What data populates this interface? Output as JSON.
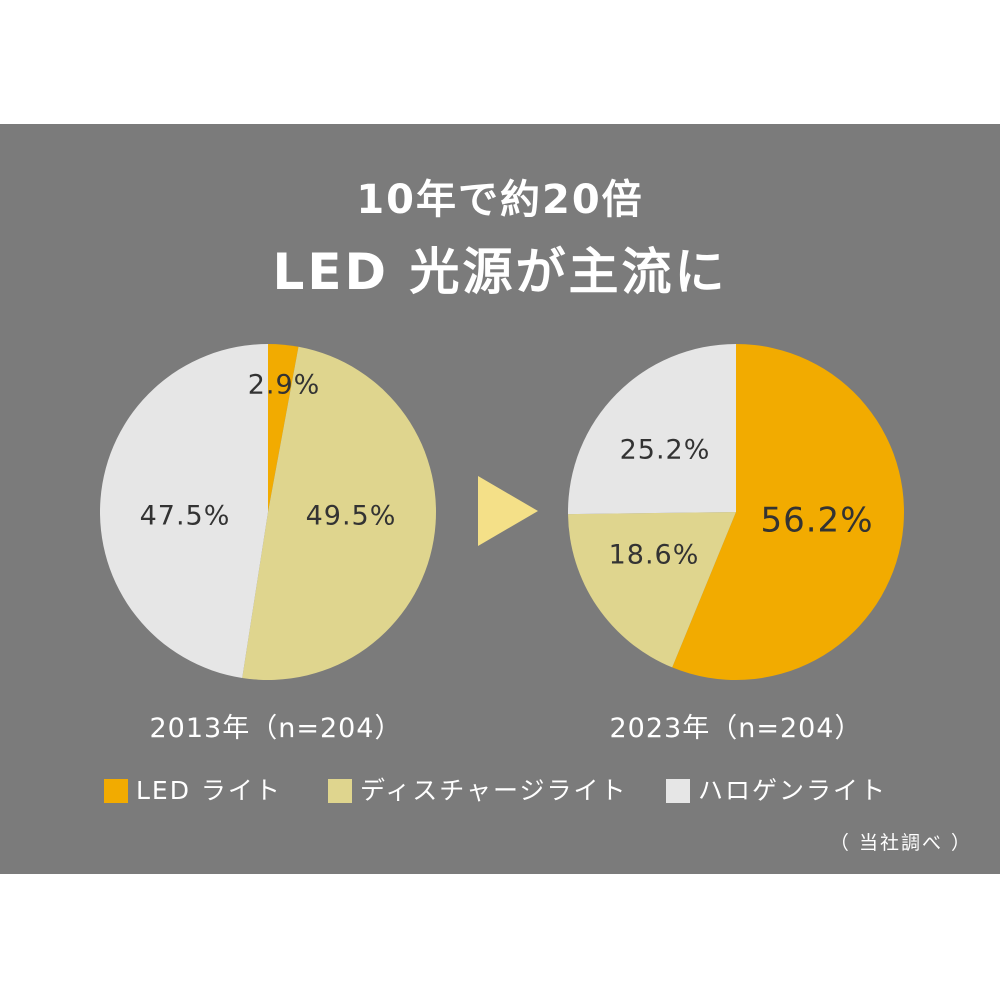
{
  "title_line1": "10年で約20倍",
  "title_line2": "LED 光源が主流に",
  "arrow_color": "#f4e088",
  "colors": {
    "led": "#f2ab00",
    "discharge": "#dfd58e",
    "halogen": "#e6e6e6"
  },
  "chart_data": [
    {
      "type": "pie",
      "label": "2013年（n=204）",
      "categories": [
        "LED ライト",
        "ディスチャージライト",
        "ハロゲンライト"
      ],
      "values": [
        2.9,
        49.5,
        47.5
      ],
      "value_labels": [
        "2.9%",
        "49.5%",
        "47.5%"
      ],
      "start": "12 o'clock, clockwise"
    },
    {
      "type": "pie",
      "label": "2023年（n=204）",
      "categories": [
        "LED ライト",
        "ディスチャージライト",
        "ハロゲンライト"
      ],
      "values": [
        56.2,
        18.6,
        25.2
      ],
      "value_labels": [
        "56.2%",
        "18.6%",
        "25.2%"
      ],
      "start": "12 o'clock, clockwise"
    }
  ],
  "legend": [
    {
      "label": "LED ライト",
      "color": "#f2ab00"
    },
    {
      "label": "ディスチャージライト",
      "color": "#dfd58e"
    },
    {
      "label": "ハロゲンライト",
      "color": "#e6e6e6"
    }
  ],
  "source": "（ 当社調べ ）"
}
